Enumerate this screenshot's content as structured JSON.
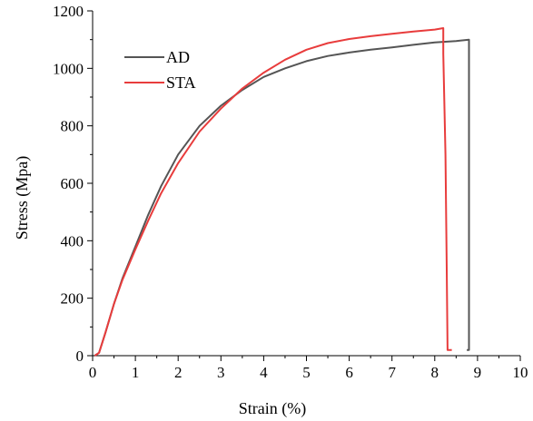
{
  "chart_data": {
    "type": "line",
    "xlabel": "Strain (%)",
    "ylabel": "Stress (Mpa)",
    "xlim": [
      0,
      10
    ],
    "ylim": [
      0,
      1200
    ],
    "xticks": [
      "0",
      "1",
      "2",
      "3",
      "4",
      "5",
      "6",
      "7",
      "8",
      "9",
      "10"
    ],
    "yticks": [
      "0",
      "200",
      "400",
      "600",
      "800",
      "1000",
      "1200"
    ],
    "grid": false,
    "legend_position": "top-left",
    "series": [
      {
        "name": "AD",
        "color": "#555555",
        "points": [
          [
            0.05,
            0
          ],
          [
            0.15,
            10
          ],
          [
            0.3,
            80
          ],
          [
            0.5,
            180
          ],
          [
            0.7,
            270
          ],
          [
            1.0,
            380
          ],
          [
            1.3,
            490
          ],
          [
            1.6,
            590
          ],
          [
            2.0,
            700
          ],
          [
            2.5,
            800
          ],
          [
            3.0,
            870
          ],
          [
            3.5,
            925
          ],
          [
            4.0,
            970
          ],
          [
            4.5,
            1000
          ],
          [
            5.0,
            1025
          ],
          [
            5.5,
            1043
          ],
          [
            6.0,
            1055
          ],
          [
            6.5,
            1065
          ],
          [
            7.0,
            1073
          ],
          [
            7.5,
            1082
          ],
          [
            8.0,
            1090
          ],
          [
            8.5,
            1095
          ],
          [
            8.8,
            1100
          ],
          [
            8.8,
            20
          ],
          [
            8.75,
            20
          ]
        ]
      },
      {
        "name": "STA",
        "color": "#e83c3c",
        "points": [
          [
            0.05,
            0
          ],
          [
            0.15,
            10
          ],
          [
            0.3,
            80
          ],
          [
            0.5,
            180
          ],
          [
            0.7,
            265
          ],
          [
            1.0,
            370
          ],
          [
            1.3,
            470
          ],
          [
            1.6,
            565
          ],
          [
            2.0,
            670
          ],
          [
            2.5,
            780
          ],
          [
            3.0,
            860
          ],
          [
            3.5,
            930
          ],
          [
            4.0,
            985
          ],
          [
            4.5,
            1030
          ],
          [
            5.0,
            1065
          ],
          [
            5.5,
            1088
          ],
          [
            6.0,
            1102
          ],
          [
            6.5,
            1112
          ],
          [
            7.0,
            1120
          ],
          [
            7.5,
            1128
          ],
          [
            8.0,
            1135
          ],
          [
            8.2,
            1140
          ],
          [
            8.2,
            1050
          ],
          [
            8.25,
            700
          ],
          [
            8.28,
            300
          ],
          [
            8.3,
            20
          ],
          [
            8.4,
            20
          ]
        ]
      }
    ]
  }
}
